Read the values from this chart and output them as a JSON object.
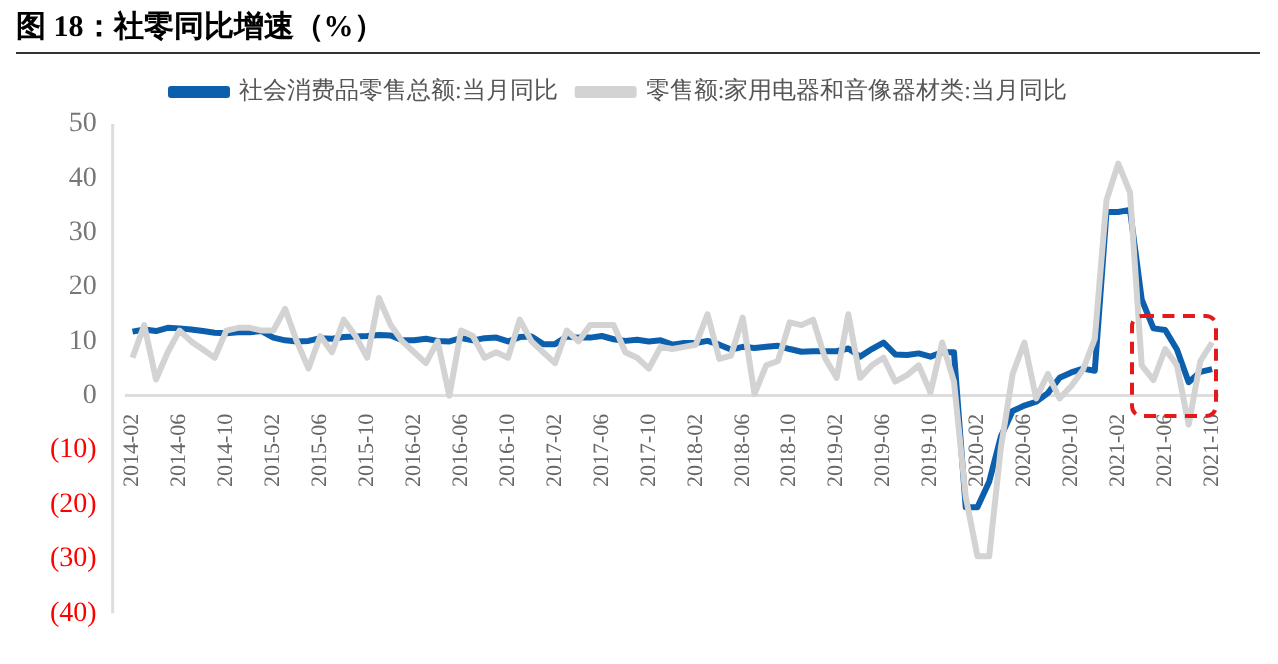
{
  "chart_data": {
    "type": "line",
    "title": "图 18：社零同比增速（%）",
    "categories": [
      "2014-02",
      null,
      null,
      null,
      "2014-06",
      null,
      null,
      null,
      "2014-10",
      null,
      null,
      null,
      "2015-02",
      null,
      null,
      null,
      "2015-06",
      null,
      null,
      null,
      "2015-10",
      null,
      null,
      null,
      "2016-02",
      null,
      null,
      null,
      "2016-06",
      null,
      null,
      null,
      "2016-10",
      null,
      null,
      null,
      "2017-02",
      null,
      null,
      null,
      "2017-06",
      null,
      null,
      null,
      "2017-10",
      null,
      null,
      null,
      "2018-02",
      null,
      null,
      null,
      "2018-06",
      null,
      null,
      null,
      "2018-10",
      null,
      null,
      null,
      "2019-02",
      null,
      null,
      null,
      "2019-06",
      null,
      null,
      null,
      "2019-10",
      null,
      null,
      null,
      "2020-02",
      null,
      null,
      null,
      "2020-06",
      null,
      null,
      null,
      "2020-10",
      null,
      null,
      null,
      "2021-02",
      null,
      null,
      null,
      "2021-06",
      null,
      null,
      null,
      "2021-10"
    ],
    "series": [
      {
        "name": "社会消费品零售总额:当月同比",
        "color": "#0b5fad",
        "values": [
          11.8,
          12.2,
          11.9,
          12.5,
          12.4,
          12.2,
          11.9,
          11.6,
          11.5,
          11.7,
          11.7,
          11.9,
          10.7,
          10.2,
          10.0,
          10.1,
          10.6,
          10.5,
          10.8,
          10.9,
          11.0,
          11.2,
          11.1,
          10.2,
          10.2,
          10.5,
          10.1,
          10.0,
          10.6,
          10.2,
          10.6,
          10.7,
          10.0,
          10.8,
          10.9,
          9.5,
          9.5,
          10.9,
          10.7,
          10.7,
          11.0,
          10.4,
          10.1,
          10.3,
          10.0,
          10.2,
          9.4,
          9.7,
          9.7,
          10.1,
          9.4,
          8.5,
          9.0,
          8.8,
          9.0,
          9.2,
          8.6,
          8.1,
          8.2,
          8.2,
          8.2,
          8.7,
          7.2,
          8.6,
          9.8,
          7.6,
          7.5,
          7.8,
          7.2,
          8.0,
          8.0,
          -20.5,
          -20.5,
          -15.8,
          -7.5,
          -2.8,
          -1.8,
          -1.1,
          0.5,
          3.3,
          4.3,
          5.0,
          4.6,
          33.8,
          33.8,
          34.2,
          17.7,
          12.4,
          12.1,
          8.5,
          2.5,
          4.4,
          4.9
        ]
      },
      {
        "name": "零售额:家用电器和音像器材类:当月同比",
        "color": "#d3d3d3",
        "values": [
          7,
          13,
          3,
          8,
          12,
          10,
          8.5,
          7,
          12,
          12.5,
          12.5,
          12,
          12,
          16,
          10,
          5,
          11,
          8,
          14,
          11,
          7,
          18,
          13,
          10,
          8,
          6,
          10,
          0,
          12,
          11,
          7,
          8,
          7,
          14,
          10,
          8,
          6,
          12,
          10,
          13,
          13,
          13,
          8,
          7,
          5,
          9,
          8.6,
          9,
          9.4,
          15,
          6.8,
          7.4,
          14.4,
          0.3,
          5.6,
          6.4,
          13.5,
          13,
          14,
          7,
          3.3,
          15,
          3.3,
          5.6,
          7,
          2.6,
          3.8,
          5.6,
          0.6,
          9.8,
          2.6,
          -18.6,
          -29.5,
          -29.5,
          -9.5,
          4,
          9.8,
          -0.5,
          4,
          -0.5,
          1.8,
          4.8,
          10.5,
          36,
          42.7,
          37.4,
          5.6,
          2.9,
          8.6,
          5.6,
          -5.3,
          6.4,
          9.8
        ]
      }
    ],
    "ylim": [
      -40,
      50
    ],
    "yticks": [
      {
        "value": -40,
        "label": "(40)"
      },
      {
        "value": -30,
        "label": "(30)"
      },
      {
        "value": -20,
        "label": "(20)"
      },
      {
        "value": -10,
        "label": "(10)"
      },
      0,
      10,
      20,
      30,
      40,
      50
    ],
    "legend": "top",
    "grid": false
  }
}
